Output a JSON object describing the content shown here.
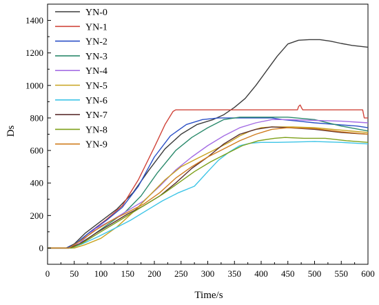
{
  "chart_data": {
    "type": "line",
    "title": "",
    "xlabel": "Time/s",
    "ylabel": "Ds",
    "xlim": [
      0,
      600
    ],
    "ylim": [
      -100,
      1500
    ],
    "xticks": [
      0,
      50,
      100,
      150,
      200,
      250,
      300,
      350,
      400,
      450,
      500,
      550,
      600
    ],
    "yticks": [
      0,
      200,
      400,
      600,
      800,
      1000,
      1200,
      1400
    ],
    "grid": false,
    "legend_position": "top-left",
    "series": [
      {
        "name": "YN-0",
        "color": "#3b3b3b",
        "x": [
          0,
          35,
          50,
          70,
          100,
          130,
          160,
          190,
          220,
          250,
          280,
          310,
          330,
          350,
          370,
          390,
          410,
          430,
          450,
          470,
          490,
          510,
          530,
          550,
          570,
          600
        ],
        "y": [
          0,
          0,
          25,
          90,
          165,
          240,
          340,
          480,
          610,
          700,
          760,
          790,
          820,
          865,
          920,
          1000,
          1090,
          1180,
          1255,
          1278,
          1282,
          1282,
          1272,
          1258,
          1246,
          1235
        ]
      },
      {
        "name": "YN-1",
        "color": "#d0443a",
        "x": [
          0,
          40,
          55,
          80,
          110,
          140,
          170,
          200,
          220,
          235,
          240,
          300,
          400,
          468,
          470,
          473,
          476,
          478,
          590,
          593,
          600
        ],
        "y": [
          0,
          0,
          30,
          100,
          175,
          260,
          420,
          620,
          760,
          840,
          850,
          850,
          850,
          850,
          870,
          880,
          860,
          850,
          850,
          800,
          800
        ]
      },
      {
        "name": "YN-2",
        "color": "#2a4fc6",
        "x": [
          0,
          35,
          50,
          80,
          110,
          140,
          170,
          200,
          230,
          260,
          290,
          320,
          360,
          400,
          420,
          440,
          470,
          500,
          540,
          580,
          600
        ],
        "y": [
          0,
          0,
          20,
          100,
          170,
          250,
          380,
          560,
          690,
          760,
          790,
          800,
          800,
          800,
          800,
          790,
          780,
          770,
          760,
          750,
          740
        ]
      },
      {
        "name": "YN-3",
        "color": "#2b8a6c",
        "x": [
          0,
          40,
          55,
          85,
          115,
          145,
          175,
          205,
          240,
          270,
          300,
          330,
          360,
          400,
          450,
          500,
          550,
          600
        ],
        "y": [
          0,
          0,
          15,
          80,
          150,
          220,
          320,
          460,
          600,
          680,
          740,
          790,
          805,
          805,
          805,
          790,
          750,
          720
        ]
      },
      {
        "name": "YN-4",
        "color": "#a46de4",
        "x": [
          0,
          40,
          60,
          90,
          120,
          150,
          180,
          210,
          240,
          270,
          300,
          330,
          360,
          390,
          420,
          450,
          500,
          550,
          600
        ],
        "y": [
          0,
          0,
          30,
          120,
          170,
          230,
          290,
          380,
          480,
          560,
          630,
          690,
          740,
          770,
          790,
          790,
          785,
          780,
          770
        ]
      },
      {
        "name": "YN-5",
        "color": "#c8a21e",
        "x": [
          0,
          50,
          70,
          100,
          130,
          160,
          190,
          220,
          250,
          280,
          310,
          340,
          360,
          380,
          400,
          420,
          440,
          460,
          500,
          550,
          600
        ],
        "y": [
          0,
          0,
          20,
          60,
          130,
          220,
          320,
          420,
          500,
          550,
          600,
          650,
          690,
          720,
          740,
          745,
          745,
          745,
          740,
          725,
          710
        ]
      },
      {
        "name": "YN-6",
        "color": "#3cc4e6",
        "x": [
          0,
          45,
          65,
          95,
          125,
          155,
          185,
          215,
          245,
          275,
          300,
          320,
          340,
          360,
          380,
          400,
          430,
          460,
          500,
          550,
          600
        ],
        "y": [
          0,
          0,
          25,
          70,
          120,
          170,
          230,
          290,
          340,
          380,
          470,
          540,
          590,
          630,
          645,
          650,
          650,
          652,
          655,
          650,
          640
        ]
      },
      {
        "name": "YN-7",
        "color": "#5b2f2f",
        "x": [
          0,
          40,
          60,
          90,
          120,
          150,
          180,
          210,
          240,
          270,
          300,
          330,
          360,
          390,
          420,
          450,
          500,
          550,
          600
        ],
        "y": [
          0,
          0,
          25,
          90,
          150,
          210,
          260,
          320,
          400,
          490,
          560,
          640,
          700,
          730,
          745,
          740,
          730,
          710,
          700
        ]
      },
      {
        "name": "YN-8",
        "color": "#7da019",
        "x": [
          0,
          45,
          65,
          95,
          125,
          155,
          185,
          215,
          245,
          275,
          305,
          335,
          365,
          395,
          425,
          445,
          480,
          520,
          560,
          600
        ],
        "y": [
          0,
          0,
          30,
          90,
          150,
          210,
          270,
          330,
          400,
          470,
          530,
          580,
          630,
          660,
          675,
          680,
          675,
          675,
          660,
          650
        ]
      },
      {
        "name": "YN-9",
        "color": "#d07c1e",
        "x": [
          0,
          40,
          60,
          90,
          120,
          150,
          180,
          210,
          240,
          270,
          300,
          330,
          360,
          390,
          420,
          450,
          500,
          550,
          600
        ],
        "y": [
          0,
          0,
          40,
          110,
          170,
          220,
          270,
          340,
          430,
          500,
          560,
          610,
          660,
          700,
          730,
          740,
          735,
          715,
          700
        ]
      }
    ]
  }
}
